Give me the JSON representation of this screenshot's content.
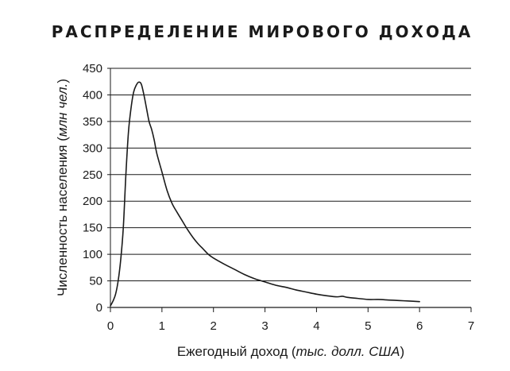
{
  "chart_data": {
    "type": "line",
    "title": "РАСПРЕДЕЛЕНИЕ МИРОВОГО ДОХОДА",
    "xlabel": {
      "main": "Ежегодный доход (",
      "italic": "тыс. долл. США",
      "close": ")"
    },
    "ylabel": {
      "main": "Численность населения (",
      "italic": "млн чел.",
      "close": ")"
    },
    "xlim": [
      0,
      7
    ],
    "ylim": [
      0,
      450
    ],
    "xticks": [
      0,
      1,
      2,
      3,
      4,
      5,
      6,
      7
    ],
    "yticks": [
      0,
      50,
      100,
      150,
      200,
      250,
      300,
      350,
      400,
      450
    ],
    "grid": "horizontal",
    "series": [
      {
        "color": "#1a1a1a",
        "points": [
          [
            0.0,
            3
          ],
          [
            0.05,
            12
          ],
          [
            0.1,
            25
          ],
          [
            0.15,
            50
          ],
          [
            0.2,
            90
          ],
          [
            0.25,
            150
          ],
          [
            0.3,
            250
          ],
          [
            0.35,
            330
          ],
          [
            0.4,
            375
          ],
          [
            0.45,
            405
          ],
          [
            0.5,
            418
          ],
          [
            0.55,
            424
          ],
          [
            0.6,
            420
          ],
          [
            0.65,
            400
          ],
          [
            0.7,
            375
          ],
          [
            0.75,
            350
          ],
          [
            0.8,
            335
          ],
          [
            0.85,
            315
          ],
          [
            0.9,
            290
          ],
          [
            1.0,
            255
          ],
          [
            1.1,
            220
          ],
          [
            1.2,
            195
          ],
          [
            1.3,
            178
          ],
          [
            1.4,
            162
          ],
          [
            1.5,
            146
          ],
          [
            1.6,
            132
          ],
          [
            1.7,
            120
          ],
          [
            1.8,
            110
          ],
          [
            1.9,
            100
          ],
          [
            2.0,
            93
          ],
          [
            2.2,
            82
          ],
          [
            2.4,
            72
          ],
          [
            2.6,
            62
          ],
          [
            2.8,
            54
          ],
          [
            3.0,
            48
          ],
          [
            3.2,
            42
          ],
          [
            3.4,
            38
          ],
          [
            3.6,
            33
          ],
          [
            3.8,
            29
          ],
          [
            4.0,
            25
          ],
          [
            4.2,
            22
          ],
          [
            4.4,
            20
          ],
          [
            4.5,
            21
          ],
          [
            4.6,
            19
          ],
          [
            4.8,
            17
          ],
          [
            5.0,
            15
          ],
          [
            5.2,
            15
          ],
          [
            5.4,
            14
          ],
          [
            5.6,
            13
          ],
          [
            5.8,
            12
          ],
          [
            6.0,
            11
          ]
        ]
      }
    ]
  }
}
